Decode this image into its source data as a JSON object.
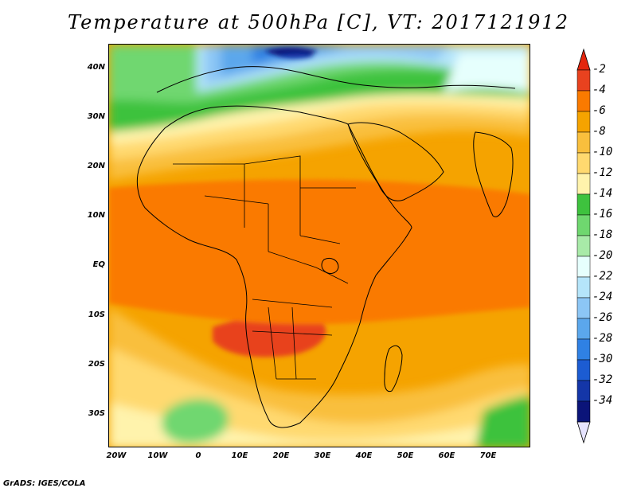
{
  "title": "Temperature at 500hPa [C], VT: 2017121912",
  "credit": "GrADS: IGES/COLA",
  "lat_labels": [
    "40N",
    "30N",
    "20N",
    "10N",
    "EQ",
    "10S",
    "20S",
    "30S"
  ],
  "lon_labels": [
    "20W",
    "10W",
    "0",
    "10E",
    "20E",
    "30E",
    "40E",
    "50E",
    "60E",
    "70E"
  ],
  "colorbar": {
    "labels": [
      "-2",
      "-4",
      "-6",
      "-8",
      "-10",
      "-12",
      "-14",
      "-16",
      "-18",
      "-20",
      "-22",
      "-24",
      "-26",
      "-28",
      "-30",
      "-32",
      "-34"
    ],
    "colors": [
      "#e8421f",
      "#fa7a00",
      "#f5a300",
      "#f9bf3d",
      "#ffd96f",
      "#fff3ac",
      "#3ec23e",
      "#6fd76f",
      "#a8eaa8",
      "#e6fffd",
      "#b5e5fa",
      "#8cc6f5",
      "#5ba7ec",
      "#2f81e4",
      "#1c5cd2",
      "#1436a8",
      "#0b1479"
    ],
    "top_triangle_color": "#e3250d",
    "bottom_triangle_color": "#e6e3ff"
  }
}
